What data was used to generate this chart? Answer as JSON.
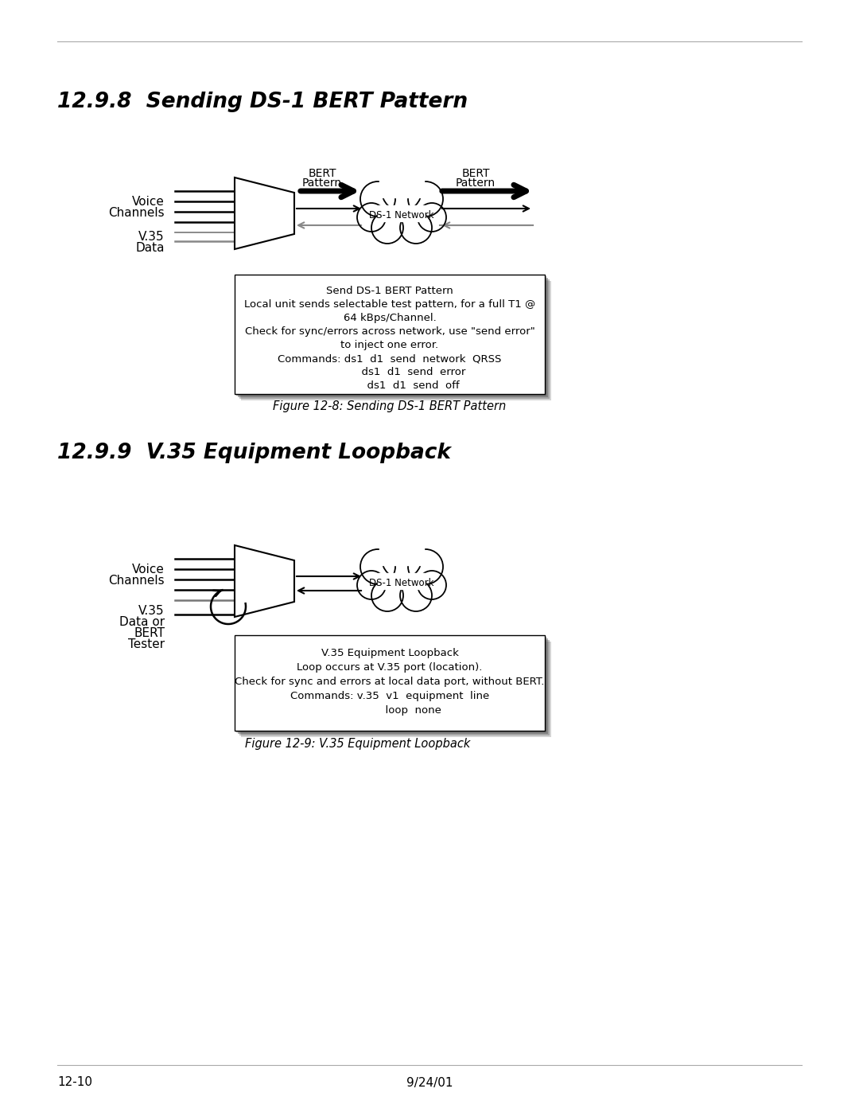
{
  "bg_color": "#ffffff",
  "section1_title": "12.9.8  Sending DS-1 BERT Pattern",
  "section2_title": "12.9.9  V.35 Equipment Loopback",
  "fig1_caption": "Figure 12-8: Sending DS-1 BERT Pattern",
  "fig2_caption": "Figure 12-9: V.35 Equipment Loopback",
  "fig1_box_line1": "Send DS-1 BERT Pattern",
  "fig1_box_line2": "Local unit sends selectable test pattern, for a full T1 @",
  "fig1_box_line3": "64 kBps/Channel.",
  "fig1_box_line4": "Check for sync/errors across network, use \"send error\"",
  "fig1_box_line5": "to inject one error.",
  "fig1_box_line6": "Commands: ds1  d1  send  network  QRSS",
  "fig1_box_line7": "              ds1  d1  send  error",
  "fig1_box_line8": "              ds1  d1  send  off",
  "fig2_box_line1": "V.35 Equipment Loopback",
  "fig2_box_line2": "Loop occurs at V.35 port (location).",
  "fig2_box_line3": "Check for sync and errors at local data port, without BERT.",
  "fig2_box_line4": "Commands: v.35  v1  equipment  line",
  "fig2_box_line5": "              loop  none",
  "footer_left": "12-10",
  "footer_center": "9/24/01",
  "cloud_label": "DS-1 Network",
  "voice_label1": "Voice",
  "voice_label2": "Channels",
  "v35_label1": "V.35",
  "v35_label2": "Data",
  "v35_label2b": "Data or",
  "bert_label3": "BERT",
  "bert_label4": "Tester",
  "bert_pattern": "BERT\nPattern",
  "shadow_colors": [
    "#cccccc",
    "#aaaaaa",
    "#888888",
    "#777777",
    "#666666"
  ]
}
